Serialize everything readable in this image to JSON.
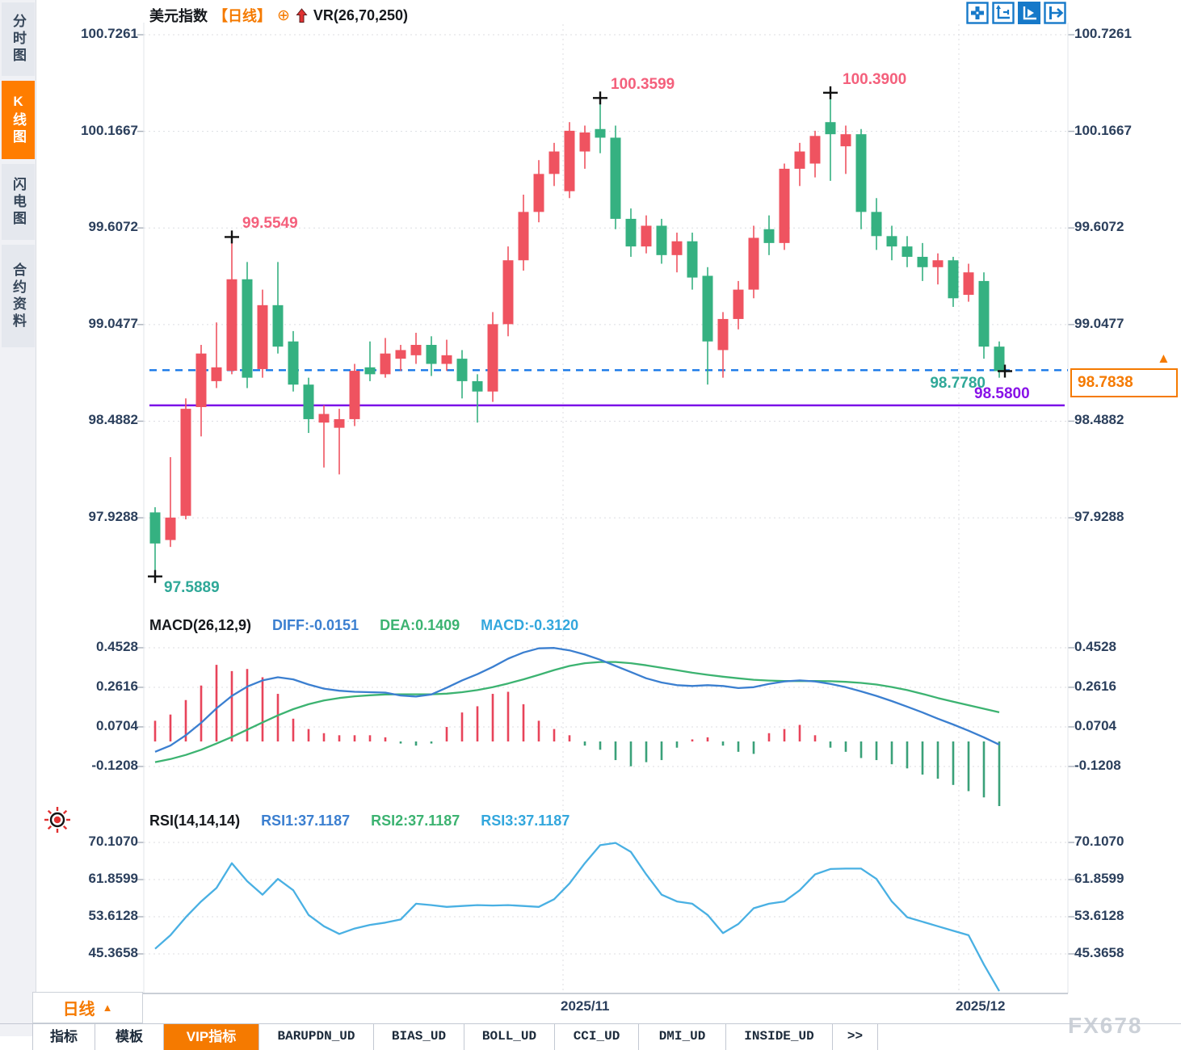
{
  "header": {
    "symbol": "美元指数",
    "period": "【日线】",
    "indicator": "VR(26,70,250)"
  },
  "icons": {
    "plus_badge": "⊕",
    "timeframe_arrow": "▲",
    "axis_price_arrow": "▲"
  },
  "sidebar": {
    "tabs": [
      {
        "label": "分时图",
        "active": false
      },
      {
        "label": "K线图",
        "active": true
      },
      {
        "label": "闪电图",
        "active": false
      },
      {
        "label": "合约资料",
        "active": false
      }
    ]
  },
  "toolbar": {
    "buttons": [
      {
        "name": "crosshair-button",
        "active": false
      },
      {
        "name": "axis-zoom-button",
        "active": false
      },
      {
        "name": "auto-scale-button",
        "active": true
      },
      {
        "name": "go-to-latest-button",
        "active": false
      }
    ]
  },
  "timeframe": {
    "label": "日线"
  },
  "bottom_tabs": {
    "items": [
      {
        "label": "指标",
        "active": false
      },
      {
        "label": "模板",
        "active": false
      },
      {
        "label": "VIP指标",
        "active": true
      },
      {
        "label": "BARUPDN_UD",
        "active": false
      },
      {
        "label": "BIAS_UD",
        "active": false
      },
      {
        "label": "BOLL_UD",
        "active": false
      },
      {
        "label": "CCI_UD",
        "active": false
      },
      {
        "label": "DMI_UD",
        "active": false
      },
      {
        "label": "INSIDE_UD",
        "active": false
      },
      {
        "label": ">>",
        "active": false
      }
    ]
  },
  "watermark": "FX678",
  "annotations": [
    {
      "label": "99.5549",
      "price": 99.5549,
      "candle": 6,
      "kind": "high",
      "color": "pink"
    },
    {
      "label": "100.3599",
      "price": 100.3599,
      "candle": 30,
      "kind": "high",
      "color": "pink"
    },
    {
      "label": "100.3900",
      "price": 100.39,
      "candle": 45,
      "kind": "high",
      "color": "pink"
    },
    {
      "label": "97.5889",
      "price": 97.5889,
      "candle": 1,
      "kind": "low",
      "color": "teal"
    },
    {
      "label": "98.7780",
      "price": 98.778,
      "candle": 56,
      "kind": "close",
      "color": "teal"
    },
    {
      "label": "98.5800",
      "price": 98.58,
      "kind": "support-line",
      "color": "purple"
    },
    {
      "label": "98.7838",
      "price": 98.7838,
      "kind": "axis-price",
      "color": "orange"
    }
  ],
  "colors": {
    "up": "#ef5360",
    "down": "#35b181",
    "blue_dash": "#1778e8",
    "purple_line": "#7b10e8",
    "diff": "#3b7fd0",
    "dea": "#3cb371",
    "hist_up": "#e8445a",
    "hist_down": "#3aa179",
    "rsi": "#49b0e3",
    "axis_text": "#2b3f5c",
    "grid": "#dcdde2",
    "orange": "#f57a00",
    "pink_label": "#f4607c",
    "teal_label": "#2fa898",
    "purple_label": "#8812e8"
  },
  "chart_data": [
    {
      "type": "candlestick",
      "title": "美元指数 日线",
      "y_ticks": [
        "100.7261",
        "100.1667",
        "99.6072",
        "99.0477",
        "98.4882",
        "97.9288"
      ],
      "date_labels": [
        "2025/11",
        "2025/12"
      ],
      "lines": [
        {
          "name": "current-price",
          "value": 98.7838,
          "style": "dashed",
          "color": "blue"
        },
        {
          "name": "support",
          "value": 98.58,
          "style": "solid",
          "color": "purple"
        }
      ],
      "candles": [
        [
          97.96,
          97.99,
          97.5889,
          97.78
        ],
        [
          97.8,
          98.28,
          97.76,
          97.93
        ],
        [
          97.94,
          98.62,
          97.92,
          98.56
        ],
        [
          98.57,
          98.93,
          98.4,
          98.88
        ],
        [
          98.72,
          99.06,
          98.68,
          98.8
        ],
        [
          98.78,
          99.5549,
          98.76,
          99.31
        ],
        [
          99.31,
          99.41,
          98.68,
          98.74
        ],
        [
          98.79,
          99.25,
          98.74,
          99.16
        ],
        [
          99.16,
          99.41,
          98.88,
          98.92
        ],
        [
          98.95,
          99.01,
          98.66,
          98.7
        ],
        [
          98.7,
          98.74,
          98.42,
          98.5
        ],
        [
          98.48,
          98.58,
          98.22,
          98.53
        ],
        [
          98.45,
          98.56,
          98.18,
          98.5
        ],
        [
          98.5,
          98.82,
          98.46,
          98.78
        ],
        [
          98.8,
          98.95,
          98.72,
          98.76
        ],
        [
          98.76,
          98.97,
          98.74,
          98.88
        ],
        [
          98.85,
          98.93,
          98.78,
          98.9
        ],
        [
          98.87,
          99.0,
          98.82,
          98.93
        ],
        [
          98.93,
          98.98,
          98.75,
          98.82
        ],
        [
          98.82,
          98.96,
          98.78,
          98.87
        ],
        [
          98.85,
          98.9,
          98.62,
          98.72
        ],
        [
          98.72,
          98.76,
          98.48,
          98.66
        ],
        [
          98.66,
          99.12,
          98.6,
          99.05
        ],
        [
          99.05,
          99.5,
          98.98,
          99.42
        ],
        [
          99.42,
          99.8,
          99.36,
          99.7
        ],
        [
          99.7,
          100.0,
          99.64,
          99.92
        ],
        [
          99.92,
          100.1,
          99.85,
          100.05
        ],
        [
          99.82,
          100.22,
          99.78,
          100.17
        ],
        [
          100.05,
          100.2,
          99.95,
          100.16
        ],
        [
          100.18,
          100.3599,
          100.04,
          100.13
        ],
        [
          100.13,
          100.2,
          99.6,
          99.66
        ],
        [
          99.66,
          99.72,
          99.44,
          99.5
        ],
        [
          99.5,
          99.68,
          99.46,
          99.62
        ],
        [
          99.62,
          99.66,
          99.4,
          99.45
        ],
        [
          99.45,
          99.58,
          99.35,
          99.53
        ],
        [
          99.53,
          99.58,
          99.25,
          99.32
        ],
        [
          99.33,
          99.38,
          98.7,
          98.95
        ],
        [
          98.9,
          99.12,
          98.74,
          99.08
        ],
        [
          99.08,
          99.3,
          99.02,
          99.25
        ],
        [
          99.25,
          99.62,
          99.2,
          99.55
        ],
        [
          99.6,
          99.68,
          99.45,
          99.52
        ],
        [
          99.52,
          99.98,
          99.48,
          99.95
        ],
        [
          99.95,
          100.1,
          99.85,
          100.05
        ],
        [
          99.98,
          100.17,
          99.9,
          100.14
        ],
        [
          100.22,
          100.39,
          99.88,
          100.15
        ],
        [
          100.08,
          100.2,
          99.92,
          100.15
        ],
        [
          100.15,
          100.18,
          99.6,
          99.7
        ],
        [
          99.7,
          99.78,
          99.48,
          99.56
        ],
        [
          99.56,
          99.62,
          99.42,
          99.5
        ],
        [
          99.5,
          99.56,
          99.38,
          99.44
        ],
        [
          99.44,
          99.52,
          99.3,
          99.38
        ],
        [
          99.38,
          99.46,
          99.28,
          99.42
        ],
        [
          99.42,
          99.44,
          99.15,
          99.2
        ],
        [
          99.22,
          99.4,
          99.18,
          99.35
        ],
        [
          99.3,
          99.35,
          98.85,
          98.92
        ],
        [
          98.92,
          98.95,
          98.74,
          98.778
        ]
      ]
    },
    {
      "type": "bar",
      "title": "MACD(26,12,9)",
      "labels": {
        "title": "MACD(26,12,9)",
        "diff": "DIFF:-0.0151",
        "dea": "DEA:0.1409",
        "macd": "MACD:-0.3120"
      },
      "y_ticks": [
        "0.4528",
        "0.2616",
        "0.0704",
        "-0.1208"
      ],
      "hist": [
        0.1,
        0.13,
        0.2,
        0.27,
        0.37,
        0.34,
        0.35,
        0.31,
        0.23,
        0.11,
        0.06,
        0.04,
        0.03,
        0.03,
        0.03,
        0.02,
        -0.01,
        -0.02,
        -0.01,
        0.07,
        0.14,
        0.17,
        0.23,
        0.24,
        0.18,
        0.1,
        0.06,
        0.03,
        -0.02,
        -0.04,
        -0.09,
        -0.12,
        -0.1,
        -0.09,
        -0.03,
        0.01,
        0.02,
        -0.02,
        -0.05,
        -0.06,
        0.04,
        0.06,
        0.08,
        0.03,
        -0.03,
        -0.05,
        -0.08,
        -0.09,
        -0.11,
        -0.13,
        -0.16,
        -0.18,
        -0.21,
        -0.24,
        -0.27,
        -0.312
      ],
      "diff": [
        -0.05,
        -0.02,
        0.03,
        0.09,
        0.16,
        0.22,
        0.265,
        0.295,
        0.31,
        0.3,
        0.275,
        0.255,
        0.245,
        0.24,
        0.238,
        0.236,
        0.222,
        0.217,
        0.227,
        0.26,
        0.295,
        0.325,
        0.36,
        0.4,
        0.43,
        0.45,
        0.452,
        0.44,
        0.42,
        0.395,
        0.365,
        0.335,
        0.305,
        0.285,
        0.272,
        0.268,
        0.272,
        0.268,
        0.258,
        0.262,
        0.278,
        0.29,
        0.295,
        0.29,
        0.278,
        0.262,
        0.242,
        0.22,
        0.195,
        0.168,
        0.14,
        0.11,
        0.082,
        0.052,
        0.02,
        -0.0151
      ],
      "dea": [
        -0.1,
        -0.085,
        -0.065,
        -0.04,
        -0.01,
        0.022,
        0.057,
        0.092,
        0.126,
        0.156,
        0.18,
        0.198,
        0.21,
        0.218,
        0.223,
        0.227,
        0.228,
        0.228,
        0.228,
        0.231,
        0.238,
        0.248,
        0.262,
        0.28,
        0.3,
        0.322,
        0.345,
        0.365,
        0.378,
        0.384,
        0.384,
        0.378,
        0.368,
        0.356,
        0.344,
        0.332,
        0.322,
        0.313,
        0.305,
        0.298,
        0.294,
        0.292,
        0.292,
        0.292,
        0.291,
        0.288,
        0.283,
        0.275,
        0.263,
        0.248,
        0.23,
        0.21,
        0.192,
        0.175,
        0.158,
        0.1409
      ]
    },
    {
      "type": "line",
      "title": "RSI(14,14,14)",
      "labels": {
        "title": "RSI(14,14,14)",
        "rsi1": "RSI1:37.1187",
        "rsi2": "RSI2:37.1187",
        "rsi3": "RSI3:37.1187"
      },
      "y_ticks": [
        "70.1070",
        "61.8599",
        "53.6128",
        "45.3658"
      ],
      "values": [
        46.5,
        49.5,
        53.5,
        57,
        60,
        65.5,
        61.5,
        58.5,
        62,
        59.5,
        54,
        51.5,
        49.8,
        51,
        51.8,
        52.3,
        53,
        56.5,
        56.2,
        55.8,
        56,
        56.2,
        56.1,
        56.2,
        56,
        55.8,
        57.5,
        61,
        65.5,
        69.5,
        70,
        68,
        63,
        58.5,
        57,
        56.5,
        54,
        50,
        52,
        55.5,
        56.5,
        57,
        59.5,
        63,
        64.2,
        64.3,
        64.3,
        62,
        57,
        53.5,
        52.5,
        51.5,
        50.5,
        49.5,
        43,
        37.11
      ]
    }
  ]
}
